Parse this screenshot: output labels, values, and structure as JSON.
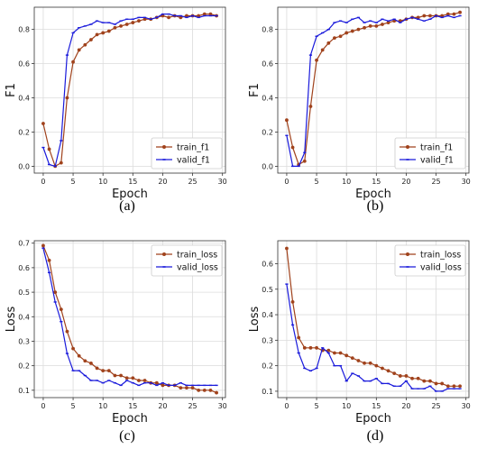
{
  "captions": [
    "(a)",
    "(b)",
    "(c)",
    "(d)"
  ],
  "chart_data": [
    {
      "type": "line",
      "xlabel": "Epoch",
      "ylabel": "F1",
      "xlim": [
        -1.5,
        30.5
      ],
      "ylim": [
        -0.04,
        0.93
      ],
      "xticks": [
        0,
        5,
        10,
        15,
        20,
        25,
        30
      ],
      "yticks": [
        0.0,
        0.2,
        0.4,
        0.6,
        0.8
      ],
      "ytick_labels": [
        "0.0",
        "0.2",
        "0.4",
        "0.6",
        "0.8"
      ],
      "grid": true,
      "legend_position": "lower-right",
      "x": [
        0,
        1,
        2,
        3,
        4,
        5,
        6,
        7,
        8,
        9,
        10,
        11,
        12,
        13,
        14,
        15,
        16,
        17,
        18,
        19,
        20,
        21,
        22,
        23,
        24,
        25,
        26,
        27,
        28,
        29
      ],
      "series": [
        {
          "name": "train_f1",
          "color": "#a0421c",
          "marker": "dot",
          "values": [
            0.25,
            0.1,
            0.0,
            0.02,
            0.4,
            0.61,
            0.68,
            0.71,
            0.74,
            0.77,
            0.78,
            0.79,
            0.81,
            0.82,
            0.83,
            0.84,
            0.85,
            0.86,
            0.86,
            0.87,
            0.88,
            0.87,
            0.88,
            0.87,
            0.88,
            0.88,
            0.88,
            0.89,
            0.89,
            0.88
          ]
        },
        {
          "name": "valid_f1",
          "color": "#1a1adb",
          "marker": "tick",
          "values": [
            0.11,
            0.01,
            0.0,
            0.15,
            0.65,
            0.78,
            0.81,
            0.82,
            0.83,
            0.85,
            0.84,
            0.84,
            0.83,
            0.85,
            0.86,
            0.86,
            0.87,
            0.87,
            0.86,
            0.87,
            0.89,
            0.89,
            0.88,
            0.88,
            0.87,
            0.88,
            0.87,
            0.88,
            0.88,
            0.88
          ]
        }
      ]
    },
    {
      "type": "line",
      "xlabel": "Epoch",
      "ylabel": "F1",
      "xlim": [
        -1.5,
        30.5
      ],
      "ylim": [
        -0.04,
        0.93
      ],
      "xticks": [
        0,
        5,
        10,
        15,
        20,
        25,
        30
      ],
      "yticks": [
        0.0,
        0.2,
        0.4,
        0.6,
        0.8
      ],
      "ytick_labels": [
        "0.0",
        "0.2",
        "0.4",
        "0.6",
        "0.8"
      ],
      "grid": true,
      "legend_position": "lower-right",
      "x": [
        0,
        1,
        2,
        3,
        4,
        5,
        6,
        7,
        8,
        9,
        10,
        11,
        12,
        13,
        14,
        15,
        16,
        17,
        18,
        19,
        20,
        21,
        22,
        23,
        24,
        25,
        26,
        27,
        28,
        29
      ],
      "series": [
        {
          "name": "train_f1",
          "color": "#a0421c",
          "marker": "dot",
          "values": [
            0.27,
            0.11,
            0.01,
            0.03,
            0.35,
            0.62,
            0.68,
            0.72,
            0.75,
            0.76,
            0.78,
            0.79,
            0.8,
            0.81,
            0.82,
            0.82,
            0.83,
            0.84,
            0.85,
            0.85,
            0.86,
            0.87,
            0.87,
            0.88,
            0.88,
            0.88,
            0.88,
            0.89,
            0.89,
            0.9
          ]
        },
        {
          "name": "valid_f1",
          "color": "#1a1adb",
          "marker": "tick",
          "values": [
            0.18,
            0.0,
            0.0,
            0.08,
            0.65,
            0.76,
            0.78,
            0.8,
            0.84,
            0.85,
            0.84,
            0.86,
            0.87,
            0.84,
            0.85,
            0.84,
            0.86,
            0.85,
            0.86,
            0.84,
            0.86,
            0.87,
            0.86,
            0.85,
            0.86,
            0.88,
            0.87,
            0.88,
            0.87,
            0.88
          ]
        }
      ]
    },
    {
      "type": "line",
      "xlabel": "Epoch",
      "ylabel": "Loss",
      "xlim": [
        -1.5,
        30.5
      ],
      "ylim": [
        0.07,
        0.71
      ],
      "xticks": [
        0,
        5,
        10,
        15,
        20,
        25,
        30
      ],
      "yticks": [
        0.1,
        0.2,
        0.3,
        0.4,
        0.5,
        0.6,
        0.7
      ],
      "ytick_labels": [
        "0.1",
        "0.2",
        "0.3",
        "0.4",
        "0.5",
        "0.6",
        "0.7"
      ],
      "grid": true,
      "legend_position": "top-right",
      "x": [
        0,
        1,
        2,
        3,
        4,
        5,
        6,
        7,
        8,
        9,
        10,
        11,
        12,
        13,
        14,
        15,
        16,
        17,
        18,
        19,
        20,
        21,
        22,
        23,
        24,
        25,
        26,
        27,
        28,
        29
      ],
      "series": [
        {
          "name": "train_loss",
          "color": "#a0421c",
          "marker": "dot",
          "values": [
            0.69,
            0.63,
            0.5,
            0.43,
            0.34,
            0.27,
            0.24,
            0.22,
            0.21,
            0.19,
            0.18,
            0.18,
            0.16,
            0.16,
            0.15,
            0.15,
            0.14,
            0.14,
            0.13,
            0.13,
            0.12,
            0.12,
            0.12,
            0.11,
            0.11,
            0.11,
            0.1,
            0.1,
            0.1,
            0.09
          ]
        },
        {
          "name": "valid_loss",
          "color": "#1a1adb",
          "marker": "tick",
          "values": [
            0.68,
            0.58,
            0.46,
            0.38,
            0.25,
            0.18,
            0.18,
            0.16,
            0.14,
            0.14,
            0.13,
            0.14,
            0.13,
            0.12,
            0.14,
            0.13,
            0.12,
            0.13,
            0.13,
            0.12,
            0.13,
            0.12,
            0.12,
            0.13,
            0.12,
            0.12,
            0.12,
            0.12,
            0.12,
            0.12
          ]
        }
      ]
    },
    {
      "type": "line",
      "xlabel": "Epoch",
      "ylabel": "Loss",
      "xlim": [
        -1.5,
        30.5
      ],
      "ylim": [
        0.075,
        0.69
      ],
      "xticks": [
        0,
        5,
        10,
        15,
        20,
        25,
        30
      ],
      "yticks": [
        0.1,
        0.2,
        0.3,
        0.4,
        0.5,
        0.6
      ],
      "ytick_labels": [
        "0.1",
        "0.2",
        "0.3",
        "0.4",
        "0.5",
        "0.6"
      ],
      "grid": true,
      "legend_position": "top-right",
      "x": [
        0,
        1,
        2,
        3,
        4,
        5,
        6,
        7,
        8,
        9,
        10,
        11,
        12,
        13,
        14,
        15,
        16,
        17,
        18,
        19,
        20,
        21,
        22,
        23,
        24,
        25,
        26,
        27,
        28,
        29
      ],
      "series": [
        {
          "name": "train_loss",
          "color": "#a0421c",
          "marker": "dot",
          "values": [
            0.66,
            0.45,
            0.31,
            0.27,
            0.27,
            0.27,
            0.26,
            0.26,
            0.25,
            0.25,
            0.24,
            0.23,
            0.22,
            0.21,
            0.21,
            0.2,
            0.19,
            0.18,
            0.17,
            0.16,
            0.16,
            0.15,
            0.15,
            0.14,
            0.14,
            0.13,
            0.13,
            0.12,
            0.12,
            0.12
          ]
        },
        {
          "name": "valid_loss",
          "color": "#1a1adb",
          "marker": "tick",
          "values": [
            0.52,
            0.36,
            0.25,
            0.19,
            0.18,
            0.19,
            0.27,
            0.25,
            0.2,
            0.2,
            0.14,
            0.17,
            0.16,
            0.14,
            0.14,
            0.15,
            0.13,
            0.13,
            0.12,
            0.12,
            0.14,
            0.11,
            0.11,
            0.11,
            0.12,
            0.1,
            0.1,
            0.11,
            0.11,
            0.11
          ]
        }
      ]
    }
  ]
}
